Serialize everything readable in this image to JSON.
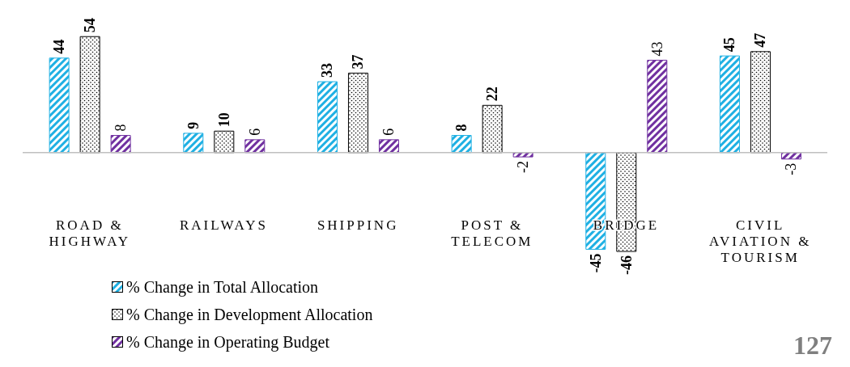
{
  "chart_data": {
    "type": "bar",
    "categories": [
      "ROAD & HIGHWAY",
      "RAILWAYS",
      "SHIPPING",
      "POST & TELECOM",
      "BRIDGE",
      "CIVIL AVIATION & TOURISM"
    ],
    "series": [
      {
        "name": "% Change in Total Allocation",
        "color": "#1fb0e3",
        "values": [
          44,
          9,
          33,
          8,
          -45,
          45
        ]
      },
      {
        "name": "% Change in Development Allocation",
        "color": "#000000",
        "values": [
          54,
          10,
          37,
          22,
          -46,
          47
        ]
      },
      {
        "name": "% Change in Operating Budget",
        "color": "#7030a0",
        "values": [
          8,
          6,
          6,
          -2,
          43,
          -3
        ]
      }
    ],
    "data_labels": true,
    "legend": "bottom left",
    "grid": false,
    "annotations": [
      "127"
    ]
  }
}
